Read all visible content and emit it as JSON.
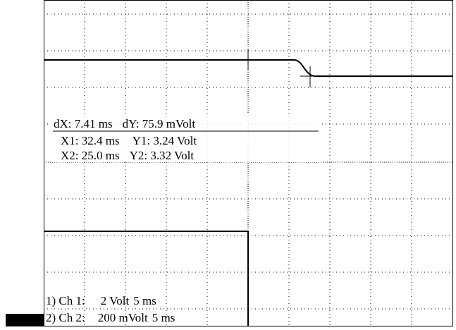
{
  "cursor_readout": {
    "dx": "dX: 7.41 ms",
    "dy": "dY: 75.9 mVolt",
    "x1": "X1: 32.4 ms",
    "y1": "Y1: 3.24 Volt",
    "x2": "X2: 25.0 ms",
    "y2": "Y2: 3.32 Volt"
  },
  "channels": [
    {
      "label": "1) Ch 1:",
      "scale": "2 Volt",
      "time": "5 ms"
    },
    {
      "label": "2) Ch 2:",
      "scale": "200 mVolt",
      "time": "5 ms"
    }
  ]
}
